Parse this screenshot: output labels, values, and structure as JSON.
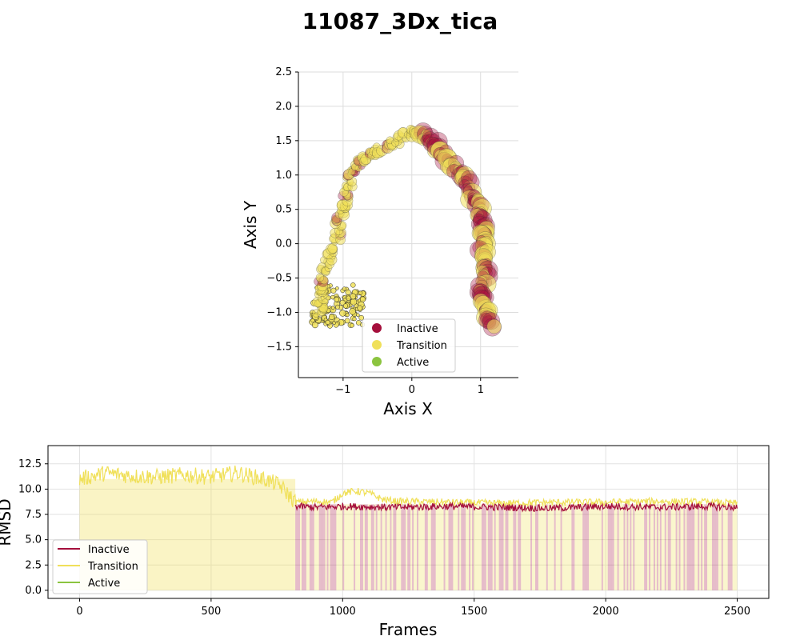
{
  "title": "11087_3Dx_tica",
  "colors": {
    "inactive": "#a50f3c",
    "transition": "#f0e05a",
    "active": "#8bc43f"
  },
  "chart_data": [
    {
      "type": "scatter",
      "xlabel": "Axis X",
      "ylabel": "Axis Y",
      "xlim": [
        -1.65,
        1.55
      ],
      "ylim": [
        -1.95,
        2.5
      ],
      "xticks": [
        "−1",
        "0",
        "1"
      ],
      "yticks": [
        "−1.5",
        "−1.0",
        "−0.5",
        "0.0",
        "0.5",
        "1.0",
        "1.5",
        "2.0",
        "2.5"
      ],
      "grid": true,
      "legend_position": "lower-center",
      "legend": [
        "Inactive",
        "Transition",
        "Active"
      ],
      "path": [
        {
          "x": -1.35,
          "y": -1.05
        },
        {
          "x": -1.32,
          "y": -0.6
        },
        {
          "x": -1.25,
          "y": -0.3
        },
        {
          "x": -1.1,
          "y": 0.05
        },
        {
          "x": -1.05,
          "y": 0.4
        },
        {
          "x": -0.95,
          "y": 0.7
        },
        {
          "x": -0.88,
          "y": 1.0
        },
        {
          "x": -0.75,
          "y": 1.2
        },
        {
          "x": -0.55,
          "y": 1.32
        },
        {
          "x": -0.3,
          "y": 1.45
        },
        {
          "x": -0.05,
          "y": 1.62
        },
        {
          "x": 0.2,
          "y": 1.58
        },
        {
          "x": 0.38,
          "y": 1.38
        },
        {
          "x": 0.55,
          "y": 1.18
        },
        {
          "x": 0.75,
          "y": 0.98
        },
        {
          "x": 0.88,
          "y": 0.7
        },
        {
          "x": 0.98,
          "y": 0.45
        },
        {
          "x": 1.05,
          "y": 0.2
        },
        {
          "x": 1.02,
          "y": -0.05
        },
        {
          "x": 1.08,
          "y": -0.35
        },
        {
          "x": 1.02,
          "y": -0.65
        },
        {
          "x": 1.05,
          "y": -0.95
        },
        {
          "x": 1.18,
          "y": -1.22
        }
      ]
    },
    {
      "type": "line",
      "xlabel": "Frames",
      "ylabel": "RMSD",
      "xlim": [
        -120,
        2620
      ],
      "ylim": [
        -0.8,
        14.3
      ],
      "xticks": [
        "0",
        "500",
        "1000",
        "1500",
        "2000",
        "2500"
      ],
      "yticks": [
        "0.0",
        "2.5",
        "5.0",
        "7.5",
        "10.0",
        "12.5"
      ],
      "grid": true,
      "legend_position": "lower-left",
      "legend": [
        "Inactive",
        "Transition",
        "Active"
      ],
      "series": [
        {
          "name": "Transition",
          "x": [
            0,
            100,
            200,
            300,
            400,
            500,
            600,
            700,
            760,
            820,
            900,
            960,
            1000,
            1050,
            1100,
            1150,
            1200,
            1400,
            1600,
            1800,
            2000,
            2200,
            2400,
            2500
          ],
          "values": [
            11.0,
            11.6,
            11.3,
            11.2,
            11.4,
            11.2,
            11.6,
            11.0,
            10.4,
            8.7,
            8.8,
            8.7,
            9.6,
            9.8,
            9.6,
            9.0,
            8.8,
            8.7,
            8.6,
            8.7,
            8.7,
            8.8,
            8.7,
            8.6
          ]
        },
        {
          "name": "Inactive",
          "x": [
            820,
            900,
            1000,
            1200,
            1400,
            1600,
            1800,
            2000,
            2200,
            2400,
            2500
          ],
          "values": [
            8.3,
            8.2,
            8.3,
            8.2,
            8.3,
            8.2,
            8.1,
            8.3,
            8.2,
            8.3,
            8.2
          ]
        }
      ]
    }
  ]
}
